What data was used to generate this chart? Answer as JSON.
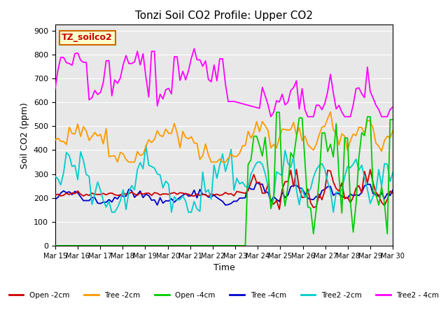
{
  "title": "Tonzi Soil CO2 Profile: Upper CO2",
  "xlabel": "Time",
  "ylabel": "Soil CO2 (ppm)",
  "dataset_label": "TZ_soilco2",
  "ylim": [
    0,
    925
  ],
  "yticks": [
    0,
    100,
    200,
    300,
    400,
    500,
    600,
    700,
    800,
    900
  ],
  "bg_color": "#e8e8e8",
  "series": {
    "Open_2cm": {
      "color": "#cc0000",
      "label": "Open -2cm"
    },
    "Tree_2cm": {
      "color": "#ff9900",
      "label": "Tree -2cm"
    },
    "Open_4cm": {
      "color": "#00cc00",
      "label": "Open -4cm"
    },
    "Tree_4cm": {
      "color": "#0000cc",
      "label": "Tree -4cm"
    },
    "Tree2_2cm": {
      "color": "#00cccc",
      "label": "Tree2 -2cm"
    },
    "Tree2_4cm": {
      "color": "#ff00ff",
      "label": "Tree2 - 4cm"
    }
  },
  "xtick_labels": [
    "Mar 15",
    "Mar 16",
    "Mar 17",
    "Mar 18",
    "Mar 19",
    "Mar 20",
    "Mar 21",
    "Mar 22",
    "Mar 23",
    "Mar 24",
    "Mar 25",
    "Mar 26",
    "Mar 27",
    "Mar 28",
    "Mar 29",
    "Mar 30"
  ],
  "n_days": 15,
  "pts_per_day": 8
}
